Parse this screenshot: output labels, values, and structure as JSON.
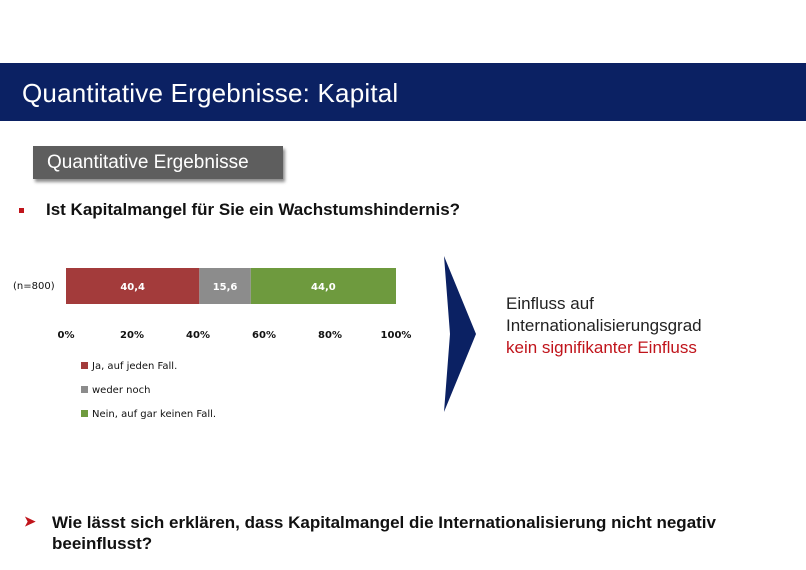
{
  "header": {
    "title": "Quantitative Ergebnisse: Kapital"
  },
  "section_tag": {
    "label": "Quantitative Ergebnisse"
  },
  "question1": {
    "text": "Ist Kapitalmangel für Sie ein Wachstumshindernis?"
  },
  "info": {
    "line1": "Einfluss auf",
    "line2": "Internationalisierungsgrad",
    "line3": "kein signifikanter Einfluss"
  },
  "question2": {
    "text": "Wie lässt sich erklären, dass Kapitalmangel die Internationalisierung nicht negativ beeinflusst?"
  },
  "colors": {
    "title_bar": "#0b2163",
    "accent_red": "#c0141b"
  },
  "chart_data": {
    "type": "bar",
    "orientation": "horizontal-stacked",
    "categories": [
      "(n=800)"
    ],
    "series": [
      {
        "name": "Ja, auf jeden Fall.",
        "values": [
          40.4
        ],
        "label": "40,4",
        "color": "#a33b3b"
      },
      {
        "name": "weder noch",
        "values": [
          15.6
        ],
        "label": "15,6",
        "color": "#8c8c8c"
      },
      {
        "name": "Nein, auf gar keinen Fall.",
        "values": [
          44.0
        ],
        "label": "44,0",
        "color": "#6e9a3e"
      }
    ],
    "xlim": [
      0,
      100
    ],
    "x_ticks": [
      "0%",
      "20%",
      "40%",
      "60%",
      "80%",
      "100%"
    ],
    "legend_position": "bottom-left",
    "grid": false
  }
}
